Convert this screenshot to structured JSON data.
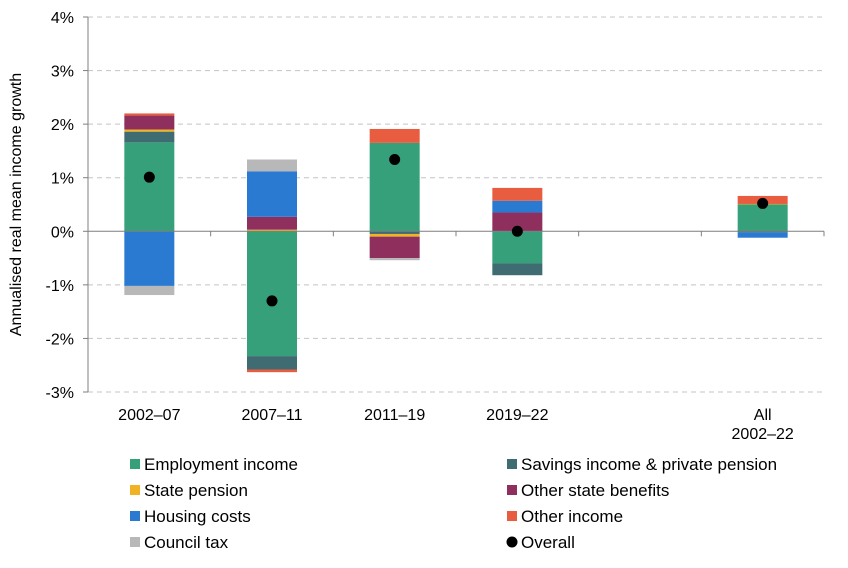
{
  "chart_data": {
    "type": "bar",
    "stacked": true,
    "ylabel": "Annualised real mean income growth",
    "xlabel": "",
    "ylim": [
      -3,
      4
    ],
    "yticks": [
      -3,
      -2,
      -1,
      0,
      1,
      2,
      3,
      4
    ],
    "ytick_labels": [
      "-3%",
      "-2%",
      "-1%",
      "0%",
      "1%",
      "2%",
      "3%",
      "4%"
    ],
    "grid": "horizontal dashed",
    "legend_position": "bottom",
    "categories": [
      {
        "label": [
          "2002–07"
        ],
        "slot": 0
      },
      {
        "label": [
          "2007–11"
        ],
        "slot": 1
      },
      {
        "label": [
          "2011–19"
        ],
        "slot": 2
      },
      {
        "label": [
          "2019–22"
        ],
        "slot": 3
      },
      {
        "label": [
          "All",
          "2002–22"
        ],
        "slot": 5
      }
    ],
    "series": [
      {
        "name": "Employment income",
        "color": "#35a07a",
        "values": [
          1.66,
          -2.33,
          1.65,
          -0.6,
          0.5
        ]
      },
      {
        "name": "Savings income & private pension",
        "color": "#3f6b73",
        "values": [
          0.2,
          -0.25,
          -0.05,
          -0.22,
          -0.02
        ]
      },
      {
        "name": "State pension",
        "color": "#f0b323",
        "values": [
          0.04,
          0.03,
          -0.05,
          0.0,
          0.01
        ]
      },
      {
        "name": "Other state benefits",
        "color": "#8e2f5d",
        "values": [
          0.26,
          0.24,
          -0.4,
          0.35,
          0.0
        ]
      },
      {
        "name": "Housing costs",
        "color": "#2a7ad1",
        "values": [
          -1.02,
          0.85,
          0.0,
          0.22,
          -0.1
        ]
      },
      {
        "name": "Other income",
        "color": "#e85d40",
        "values": [
          0.04,
          -0.05,
          0.26,
          0.24,
          0.15
        ]
      },
      {
        "name": "Council tax",
        "color": "#b8b8b8",
        "values": [
          -0.17,
          0.22,
          -0.04,
          0.0,
          0.0
        ]
      }
    ],
    "overall": {
      "name": "Overall",
      "color": "#000000",
      "values": [
        1.01,
        -1.3,
        1.34,
        0.0,
        0.52
      ]
    }
  }
}
